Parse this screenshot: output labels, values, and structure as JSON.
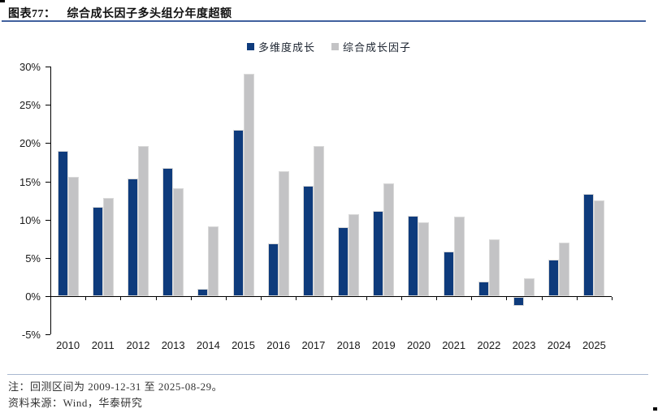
{
  "header": {
    "figure_label": "图表77：",
    "title": "综合成长因子多头组分年度超额"
  },
  "footer": {
    "note": "注：回测区间为 2009-12-31 至 2025-08-29。",
    "source": "资料来源：Wind，华泰研究"
  },
  "colors": {
    "series1": "#0e3b7c",
    "series2": "#c3c3c5",
    "axis": "#000000",
    "title_rule": "#41619e",
    "footer_rule": "#a9b8d0"
  },
  "chart_data": {
    "type": "bar",
    "title": "综合成长因子多头组分年度超额",
    "categories": [
      "2010",
      "2011",
      "2012",
      "2013",
      "2014",
      "2015",
      "2016",
      "2017",
      "2018",
      "2019",
      "2020",
      "2021",
      "2022",
      "2023",
      "2024",
      "2025"
    ],
    "series": [
      {
        "name": "多维度成长",
        "color": "#0e3b7c",
        "values": [
          19.0,
          11.7,
          15.4,
          16.7,
          1.0,
          21.7,
          6.9,
          14.4,
          9.0,
          11.1,
          10.5,
          5.8,
          1.9,
          -1.2,
          4.8,
          13.4
        ]
      },
      {
        "name": "综合成长因子",
        "color": "#c3c3c5",
        "values": [
          15.6,
          12.8,
          19.6,
          14.1,
          9.1,
          29.0,
          16.3,
          19.6,
          10.7,
          14.7,
          9.6,
          10.4,
          7.4,
          2.3,
          7.0,
          12.5
        ]
      }
    ],
    "xlabel": "",
    "ylabel": "",
    "ylim": [
      -5,
      30
    ],
    "ytick_step": 5,
    "ytick_labels": [
      "30%",
      "25%",
      "20%",
      "15%",
      "10%",
      "5%",
      "0%",
      "-5%"
    ],
    "grid": false,
    "legend_position": "top-center"
  }
}
